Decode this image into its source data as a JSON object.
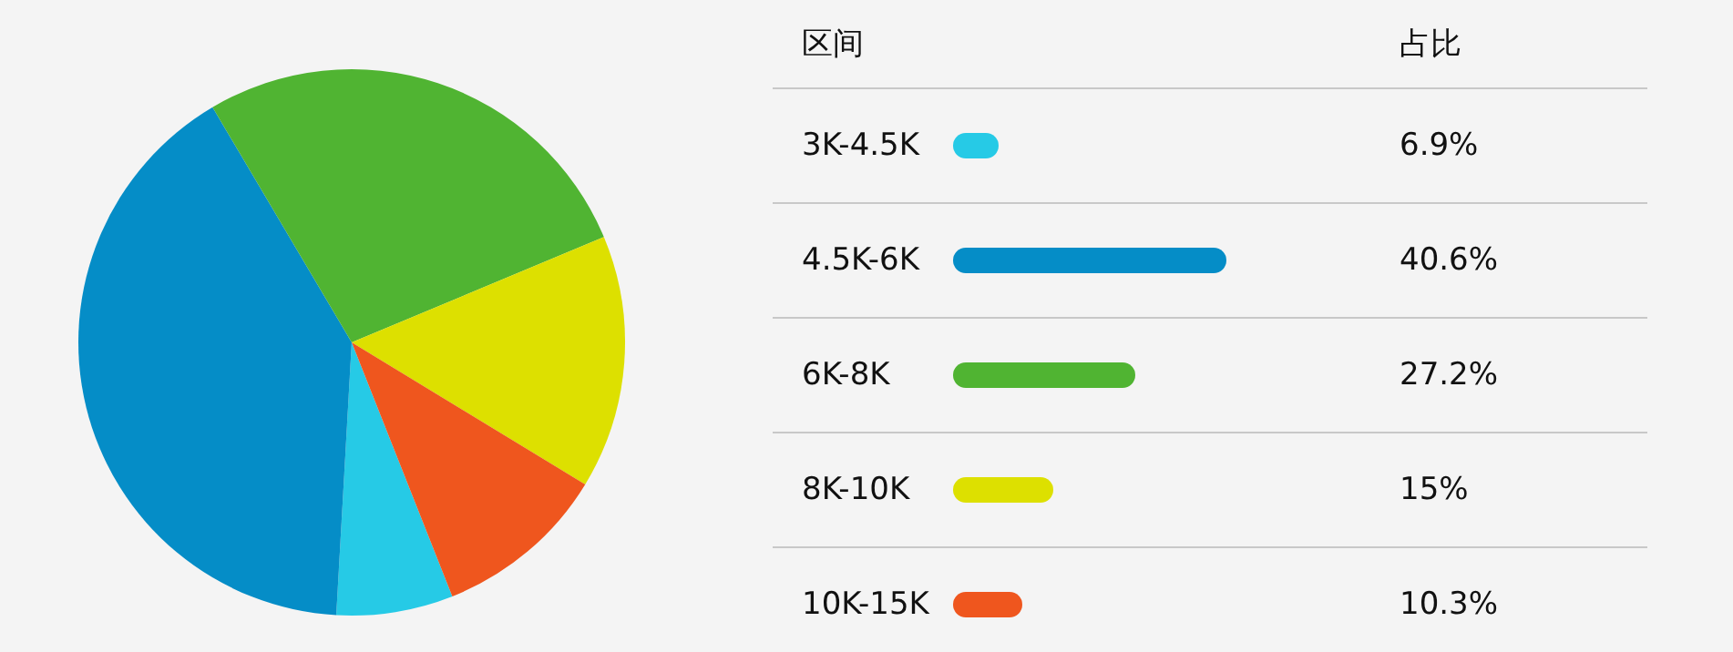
{
  "chart_data": {
    "type": "pie",
    "categories": [
      "3K-4.5K",
      "4.5K-6K",
      "6K-8K",
      "8K-10K",
      "10K-15K"
    ],
    "values": [
      6.9,
      40.6,
      27.2,
      15,
      10.3
    ],
    "colors": [
      "#26cae6",
      "#058dc7",
      "#50b432",
      "#dde000",
      "#ef561e"
    ],
    "value_labels": [
      "6.9%",
      "40.6%",
      "27.2%",
      "15%",
      "10.3%"
    ],
    "annotations": [
      "区间",
      "占比"
    ],
    "legend": "right"
  }
}
